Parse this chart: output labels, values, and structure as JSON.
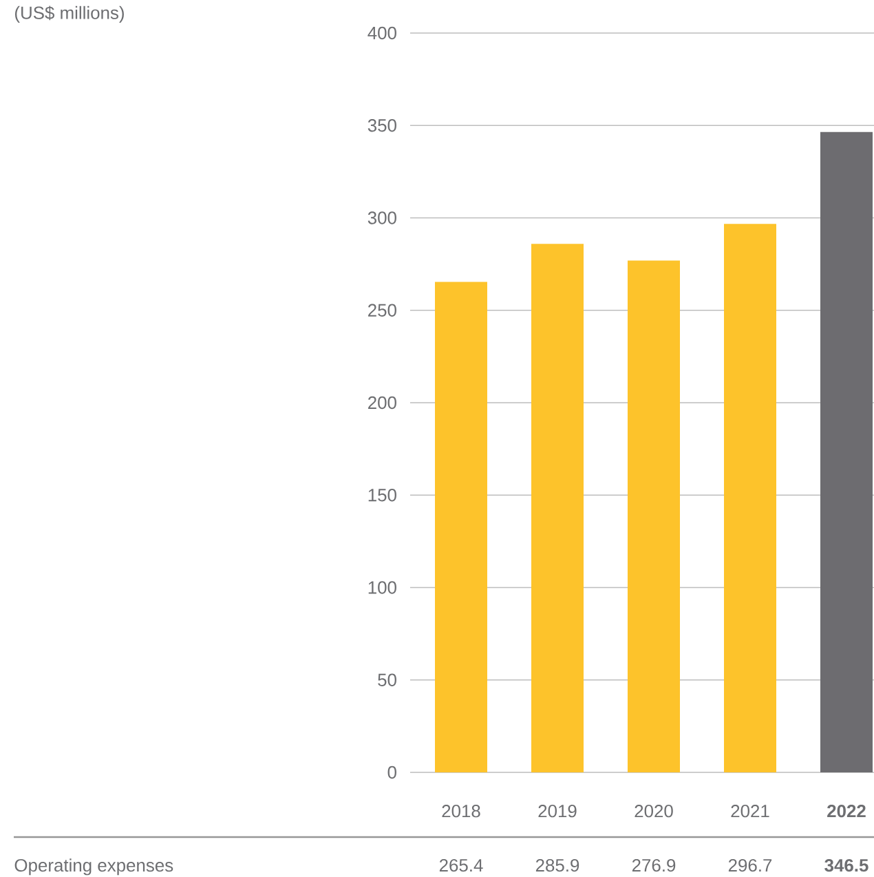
{
  "chart_data": {
    "type": "bar",
    "annotations": [
      "(US$ millions)"
    ],
    "categories": [
      "2018",
      "2019",
      "2020",
      "2021",
      "2022"
    ],
    "series": [
      {
        "name": "Operating expenses",
        "values": [
          265.4,
          285.9,
          276.9,
          296.7,
          346.5
        ],
        "colors": [
          "#fdc32b",
          "#fdc32b",
          "#fdc32b",
          "#fdc32b",
          "#6d6c70"
        ]
      }
    ],
    "data_labels": true,
    "grid": "y",
    "legend": false,
    "ylim": [
      0,
      400
    ],
    "yticks": [
      0,
      50,
      100,
      150,
      200,
      250,
      300,
      350,
      400
    ]
  }
}
